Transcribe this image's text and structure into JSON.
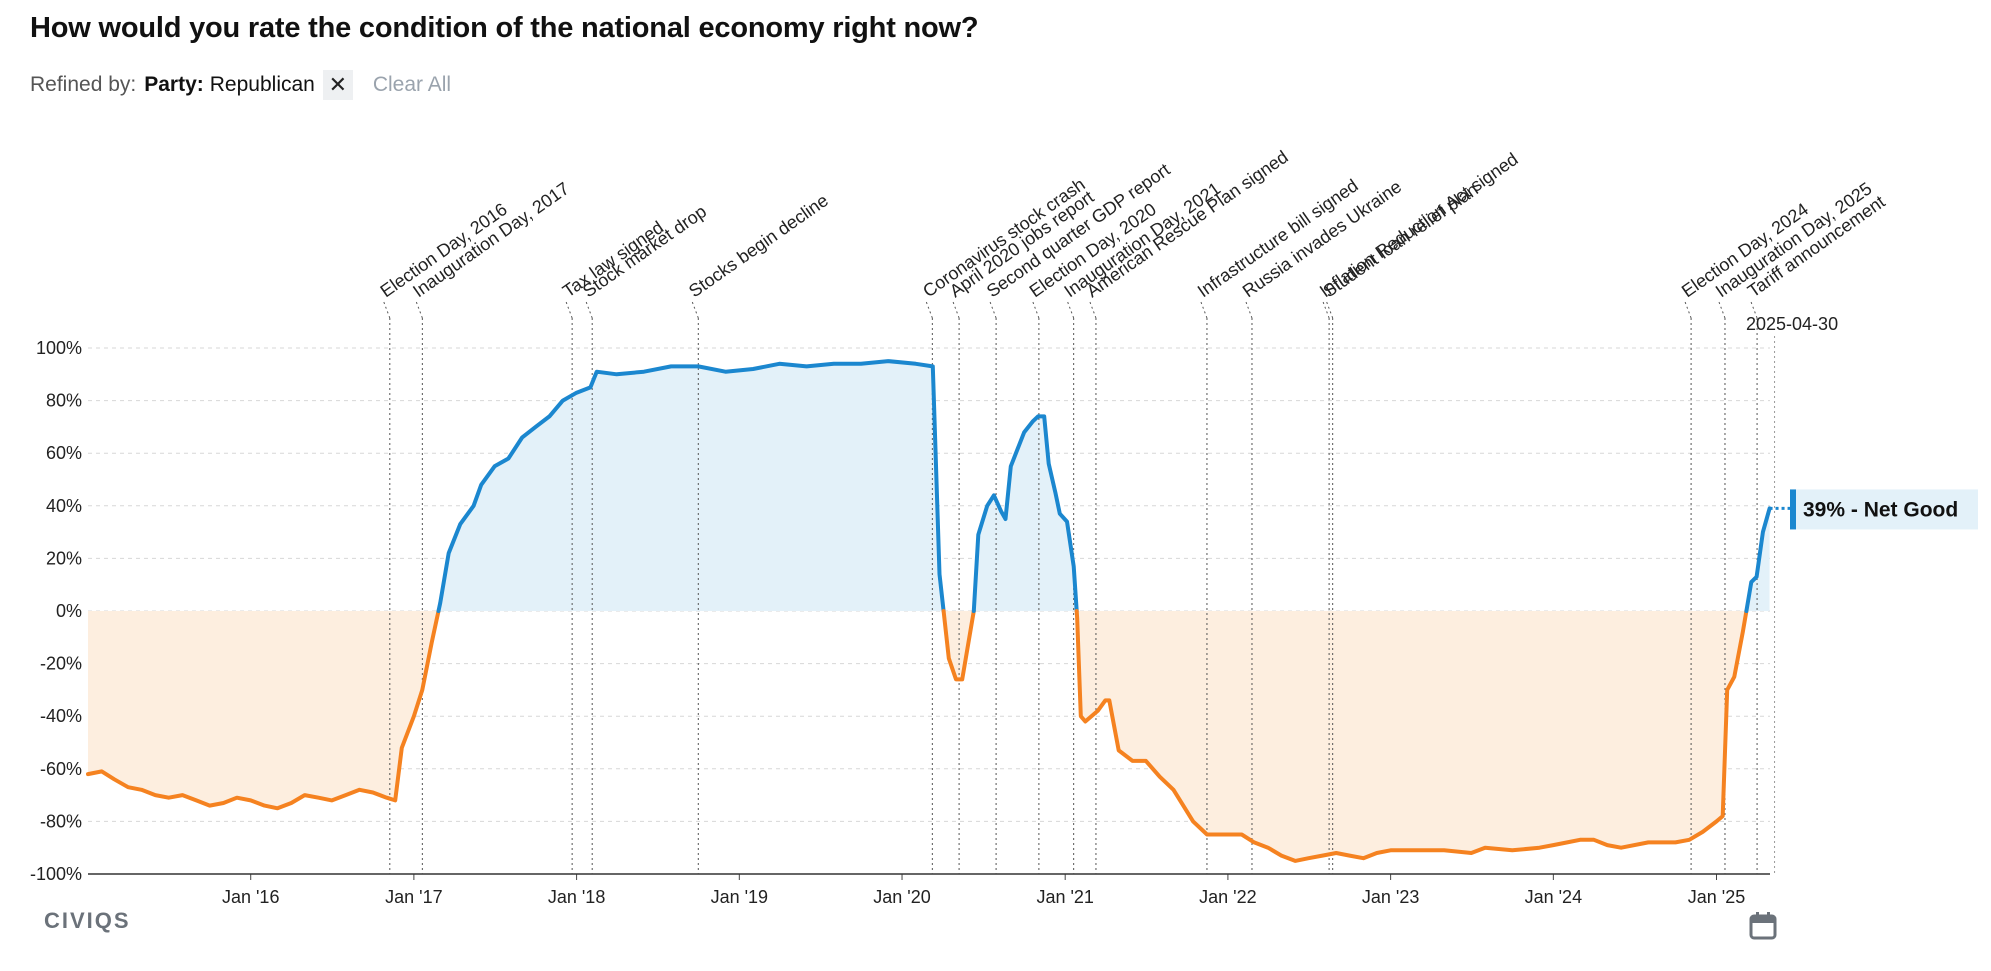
{
  "title": "How would you rate the condition of the national economy right now?",
  "refine": {
    "label": "Refined by:",
    "filter_key": "Party:",
    "filter_value": "Republican",
    "remove_icon": "close-icon",
    "clear_label": "Clear All"
  },
  "logo_text": "CIVIQS",
  "calendar_icon": "calendar-icon",
  "colors": {
    "positive": "#1b87cf",
    "negative": "#f58220",
    "positive_fill": "#e3f1f9",
    "negative_fill": "#fdeedf",
    "tag_bg": "#e3f1f9"
  },
  "chart_data": {
    "type": "line",
    "y_label_suffix": "%",
    "ylim": [
      -100,
      100
    ],
    "y_ticks": [
      100,
      80,
      60,
      40,
      20,
      0,
      -20,
      -40,
      -60,
      -80,
      -100
    ],
    "x_ticks": [
      "Jan '16",
      "Jan '17",
      "Jan '18",
      "Jan '19",
      "Jan '20",
      "Jan '21",
      "Jan '22",
      "Jan '23",
      "Jan '24",
      "Jan '25"
    ],
    "x_range": [
      "2015-01-01",
      "2025-05-01"
    ],
    "grid": true,
    "end_date_label": "2025-04-30",
    "end_label": "39% - Net Good",
    "series": [
      {
        "points": [
          [
            "2015-01-01",
            -62
          ],
          [
            "2015-02-01",
            -61
          ],
          [
            "2015-03-01",
            -64
          ],
          [
            "2015-04-01",
            -67
          ],
          [
            "2015-05-01",
            -68
          ],
          [
            "2015-06-01",
            -70
          ],
          [
            "2015-07-01",
            -71
          ],
          [
            "2015-08-01",
            -70
          ],
          [
            "2015-09-01",
            -72
          ],
          [
            "2015-10-01",
            -74
          ],
          [
            "2015-11-01",
            -73
          ],
          [
            "2015-12-01",
            -71
          ],
          [
            "2016-01-01",
            -72
          ],
          [
            "2016-02-01",
            -74
          ],
          [
            "2016-03-01",
            -75
          ],
          [
            "2016-04-01",
            -73
          ],
          [
            "2016-05-01",
            -70
          ],
          [
            "2016-06-01",
            -71
          ],
          [
            "2016-07-01",
            -72
          ],
          [
            "2016-08-01",
            -70
          ],
          [
            "2016-09-01",
            -68
          ],
          [
            "2016-10-01",
            -69
          ],
          [
            "2016-11-01",
            -71
          ],
          [
            "2016-11-20",
            -72
          ],
          [
            "2016-12-05",
            -52
          ],
          [
            "2017-01-01",
            -40
          ],
          [
            "2017-01-20",
            -30
          ],
          [
            "2017-02-10",
            -12
          ],
          [
            "2017-03-01",
            3
          ],
          [
            "2017-03-20",
            22
          ],
          [
            "2017-04-15",
            33
          ],
          [
            "2017-05-15",
            40
          ],
          [
            "2017-06-01",
            48
          ],
          [
            "2017-07-01",
            55
          ],
          [
            "2017-08-01",
            58
          ],
          [
            "2017-09-01",
            66
          ],
          [
            "2017-10-01",
            70
          ],
          [
            "2017-11-01",
            74
          ],
          [
            "2017-12-01",
            80
          ],
          [
            "2018-01-01",
            83
          ],
          [
            "2018-02-01",
            85
          ],
          [
            "2018-02-15",
            91
          ],
          [
            "2018-04-01",
            90
          ],
          [
            "2018-06-01",
            91
          ],
          [
            "2018-08-01",
            93
          ],
          [
            "2018-10-01",
            93
          ],
          [
            "2018-12-01",
            91
          ],
          [
            "2019-02-01",
            92
          ],
          [
            "2019-04-01",
            94
          ],
          [
            "2019-06-01",
            93
          ],
          [
            "2019-08-01",
            94
          ],
          [
            "2019-10-01",
            94
          ],
          [
            "2019-12-01",
            95
          ],
          [
            "2020-02-01",
            94
          ],
          [
            "2020-03-10",
            93
          ],
          [
            "2020-03-25",
            14
          ],
          [
            "2020-04-15",
            -18
          ],
          [
            "2020-05-01",
            -26
          ],
          [
            "2020-05-15",
            -26
          ],
          [
            "2020-06-10",
            0
          ],
          [
            "2020-06-20",
            29
          ],
          [
            "2020-07-10",
            40
          ],
          [
            "2020-07-25",
            44
          ],
          [
            "2020-08-10",
            38
          ],
          [
            "2020-08-20",
            35
          ],
          [
            "2020-09-01",
            55
          ],
          [
            "2020-10-01",
            68
          ],
          [
            "2020-10-20",
            72
          ],
          [
            "2020-11-01",
            74
          ],
          [
            "2020-11-15",
            74
          ],
          [
            "2020-11-25",
            56
          ],
          [
            "2020-12-10",
            45
          ],
          [
            "2020-12-20",
            37
          ],
          [
            "2021-01-05",
            34
          ],
          [
            "2021-01-20",
            17
          ],
          [
            "2021-01-28",
            -3
          ],
          [
            "2021-02-05",
            -40
          ],
          [
            "2021-02-15",
            -42
          ],
          [
            "2021-03-15",
            -38
          ],
          [
            "2021-04-01",
            -34
          ],
          [
            "2021-04-10",
            -34
          ],
          [
            "2021-05-01",
            -53
          ],
          [
            "2021-06-01",
            -57
          ],
          [
            "2021-07-01",
            -57
          ],
          [
            "2021-08-01",
            -63
          ],
          [
            "2021-09-01",
            -68
          ],
          [
            "2021-10-15",
            -80
          ],
          [
            "2021-11-15",
            -85
          ],
          [
            "2022-01-01",
            -85
          ],
          [
            "2022-02-01",
            -85
          ],
          [
            "2022-03-01",
            -88
          ],
          [
            "2022-04-01",
            -90
          ],
          [
            "2022-05-01",
            -93
          ],
          [
            "2022-06-01",
            -95
          ],
          [
            "2022-07-01",
            -94
          ],
          [
            "2022-08-01",
            -93
          ],
          [
            "2022-09-01",
            -92
          ],
          [
            "2022-10-01",
            -93
          ],
          [
            "2022-11-01",
            -94
          ],
          [
            "2022-12-01",
            -92
          ],
          [
            "2023-01-01",
            -91
          ],
          [
            "2023-03-01",
            -91
          ],
          [
            "2023-05-01",
            -91
          ],
          [
            "2023-07-01",
            -92
          ],
          [
            "2023-08-01",
            -90
          ],
          [
            "2023-10-01",
            -91
          ],
          [
            "2023-12-01",
            -90
          ],
          [
            "2024-01-01",
            -89
          ],
          [
            "2024-02-01",
            -88
          ],
          [
            "2024-03-01",
            -87
          ],
          [
            "2024-04-01",
            -87
          ],
          [
            "2024-05-01",
            -89
          ],
          [
            "2024-06-01",
            -90
          ],
          [
            "2024-08-01",
            -88
          ],
          [
            "2024-10-01",
            -88
          ],
          [
            "2024-11-01",
            -87
          ],
          [
            "2024-12-01",
            -84
          ],
          [
            "2025-01-01",
            -80
          ],
          [
            "2025-01-15",
            -78
          ],
          [
            "2025-01-25",
            -30
          ],
          [
            "2025-02-10",
            -25
          ],
          [
            "2025-03-01",
            -8
          ],
          [
            "2025-03-20",
            11
          ],
          [
            "2025-04-01",
            13
          ],
          [
            "2025-04-15",
            30
          ],
          [
            "2025-04-30",
            39
          ]
        ]
      }
    ],
    "events": [
      {
        "label": "Election Day, 2016",
        "date": "2016-11-08",
        "date_label": ""
      },
      {
        "label": "Inauguration Day, 2017",
        "date": "2017-01-20",
        "date_label": ""
      },
      {
        "label": "Tax law signed",
        "date": "2017-12-22",
        "date_label": ""
      },
      {
        "label": "Stock market drop",
        "date": "2018-02-05",
        "date_label": ""
      },
      {
        "label": "Stocks begin decline",
        "date": "2018-10-01",
        "date_label": ""
      },
      {
        "label": "Coronavirus stock crash",
        "date": "2020-03-09",
        "date_label": ""
      },
      {
        "label": "April 2020 jobs report",
        "date": "2020-05-08",
        "date_label": ""
      },
      {
        "label": "Second quarter GDP report",
        "date": "2020-07-30",
        "date_label": ""
      },
      {
        "label": "Election Day, 2020",
        "date": "2020-11-03",
        "date_label": ""
      },
      {
        "label": "Inauguration Day, 2021",
        "date": "2021-01-20",
        "date_label": ""
      },
      {
        "label": "American Rescue Plan signed",
        "date": "2021-03-11",
        "date_label": ""
      },
      {
        "label": "Infrastructure bill signed",
        "date": "2021-11-15",
        "date_label": ""
      },
      {
        "label": "Russia invades Ukraine",
        "date": "2022-02-24",
        "date_label": ""
      },
      {
        "label": "Inflation Reduction Act signed",
        "date": "2022-08-16",
        "date_label": ""
      },
      {
        "label": "Student loan relief plan",
        "date": "2022-08-24",
        "date_label": ""
      },
      {
        "label": "Election Day, 2024",
        "date": "2024-11-05",
        "date_label": ""
      },
      {
        "label": "Inauguration Day, 2025",
        "date": "2025-01-20",
        "date_label": ""
      },
      {
        "label": "Tariff announcement",
        "date": "2025-04-02",
        "date_label": ""
      }
    ]
  }
}
